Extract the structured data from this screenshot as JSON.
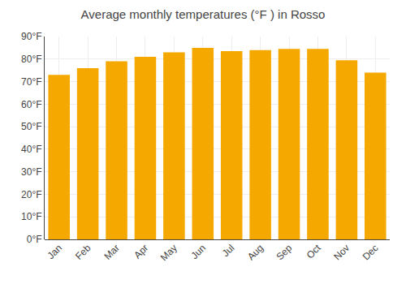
{
  "chart_data": {
    "type": "bar",
    "title": "Average monthly temperatures (°F ) in Rosso",
    "categories": [
      "Jan",
      "Feb",
      "Mar",
      "Apr",
      "May",
      "Jun",
      "Jul",
      "Aug",
      "Sep",
      "Oct",
      "Nov",
      "Dec"
    ],
    "values": [
      73,
      76,
      79,
      81,
      83,
      85,
      83.5,
      84,
      84.5,
      84.5,
      79.5,
      74
    ],
    "color": "#F5A800",
    "ylim": [
      0,
      90
    ],
    "yticks": [
      {
        "value": 0,
        "label": "0°F"
      },
      {
        "value": 10,
        "label": "10°F"
      },
      {
        "value": 20,
        "label": "20°F"
      },
      {
        "value": 30,
        "label": "30°F"
      },
      {
        "value": 40,
        "label": "40°F"
      },
      {
        "value": 50,
        "label": "50°F"
      },
      {
        "value": 60,
        "label": "60°F"
      },
      {
        "value": 70,
        "label": "70°F"
      },
      {
        "value": 80,
        "label": "80°F"
      },
      {
        "value": 90,
        "label": "90°F"
      }
    ],
    "grid": true
  }
}
